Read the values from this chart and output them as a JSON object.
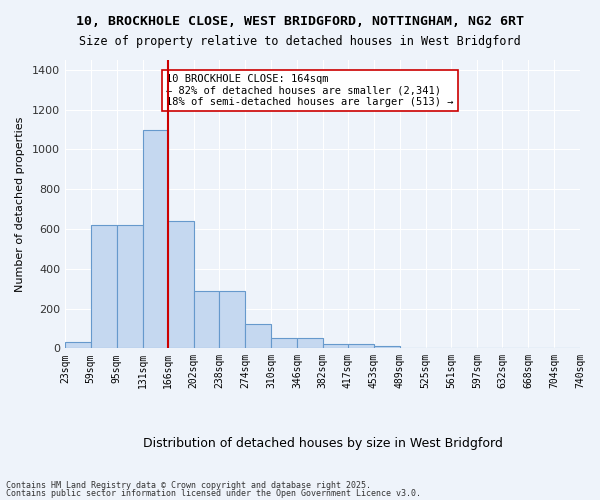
{
  "title_line1": "10, BROCKHOLE CLOSE, WEST BRIDGFORD, NOTTINGHAM, NG2 6RT",
  "title_line2": "Size of property relative to detached houses in West Bridgford",
  "xlabel": "Distribution of detached houses by size in West Bridgford",
  "ylabel": "Number of detached properties",
  "bin_labels": [
    "23sqm",
    "59sqm",
    "95sqm",
    "131sqm",
    "166sqm",
    "202sqm",
    "238sqm",
    "274sqm",
    "310sqm",
    "346sqm",
    "382sqm",
    "417sqm",
    "453sqm",
    "489sqm",
    "525sqm",
    "561sqm",
    "597sqm",
    "632sqm",
    "668sqm",
    "704sqm",
    "740sqm"
  ],
  "bar_heights": [
    30,
    620,
    620,
    1100,
    640,
    290,
    290,
    120,
    50,
    50,
    20,
    20,
    10,
    0,
    0,
    0,
    0,
    0,
    0,
    0
  ],
  "bar_left_edges": [
    23,
    59,
    95,
    131,
    166,
    202,
    238,
    274,
    310,
    346,
    382,
    417,
    453,
    489,
    525,
    561,
    597,
    632,
    668,
    704
  ],
  "bin_width": 36,
  "property_size": 164,
  "vline_x": 166,
  "bar_color": "#c5d8f0",
  "bar_edge_color": "#6699cc",
  "vline_color": "#cc0000",
  "annotation_text": "10 BROCKHOLE CLOSE: 164sqm\n← 82% of detached houses are smaller (2,341)\n18% of semi-detached houses are larger (513) →",
  "annotation_box_color": "#ffffff",
  "annotation_box_edge": "#cc0000",
  "ylim": [
    0,
    1450
  ],
  "yticks": [
    0,
    200,
    400,
    600,
    800,
    1000,
    1200,
    1400
  ],
  "background_color": "#eef3fa",
  "grid_color": "#ffffff",
  "footer_line1": "Contains HM Land Registry data © Crown copyright and database right 2025.",
  "footer_line2": "Contains public sector information licensed under the Open Government Licence v3.0."
}
